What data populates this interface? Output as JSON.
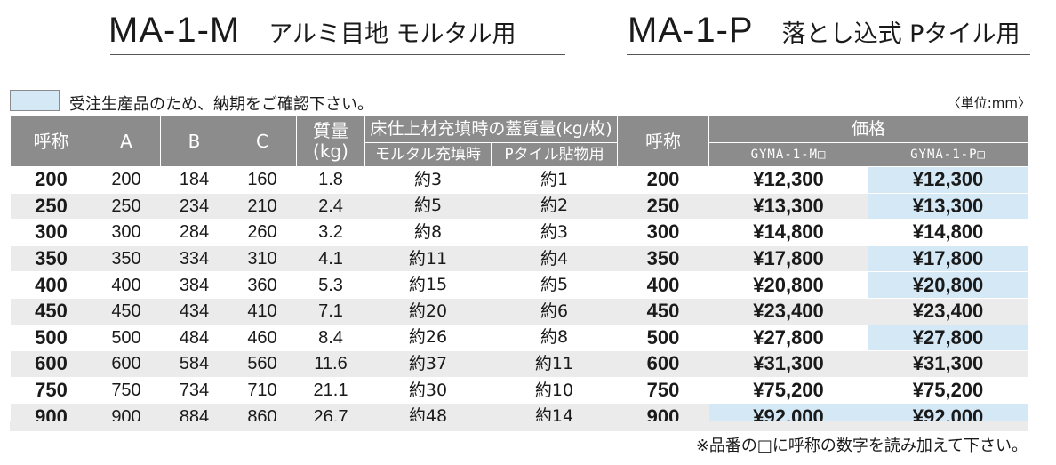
{
  "titles": {
    "left_code": "MA-1-M",
    "left_sub": "アルミ目地 モルタル用",
    "right_code": "MA-1-P",
    "right_sub": "落とし込式 Pタイル用"
  },
  "legend": {
    "swatch_color": "#d4e8f6",
    "text": "受注生産品のため、納期をご確認下さい。",
    "unit": "〈単位:mm〉"
  },
  "table": {
    "headers": {
      "name": "呼称",
      "a": "A",
      "b": "B",
      "c": "C",
      "weight_line1": "質量",
      "weight_line2": "(kg)",
      "cover_group": "床仕上材充填時の蓋質量(kg/枚)",
      "mortar": "モルタル充填時",
      "ptile": "Pタイル貼物用",
      "name2": "呼称",
      "price_group": "価格",
      "price_m": "GYMA-1-M□",
      "price_p": "GYMA-1-P□"
    },
    "highlight_color": "#d4e8f6",
    "rows": [
      {
        "name": "200",
        "a": "200",
        "b": "184",
        "c": "160",
        "weight": "1.8",
        "mortar": "約3",
        "ptile": "約1",
        "name2": "200",
        "price_m": "¥12,300",
        "price_p": "¥12,300",
        "m_hl": false,
        "p_hl": true
      },
      {
        "name": "250",
        "a": "250",
        "b": "234",
        "c": "210",
        "weight": "2.4",
        "mortar": "約5",
        "ptile": "約2",
        "name2": "250",
        "price_m": "¥13,300",
        "price_p": "¥13,300",
        "m_hl": false,
        "p_hl": true
      },
      {
        "name": "300",
        "a": "300",
        "b": "284",
        "c": "260",
        "weight": "3.2",
        "mortar": "約8",
        "ptile": "約3",
        "name2": "300",
        "price_m": "¥14,800",
        "price_p": "¥14,800",
        "m_hl": false,
        "p_hl": false
      },
      {
        "name": "350",
        "a": "350",
        "b": "334",
        "c": "310",
        "weight": "4.1",
        "mortar": "約11",
        "ptile": "約4",
        "name2": "350",
        "price_m": "¥17,800",
        "price_p": "¥17,800",
        "m_hl": false,
        "p_hl": true
      },
      {
        "name": "400",
        "a": "400",
        "b": "384",
        "c": "360",
        "weight": "5.3",
        "mortar": "約15",
        "ptile": "約5",
        "name2": "400",
        "price_m": "¥20,800",
        "price_p": "¥20,800",
        "m_hl": false,
        "p_hl": true
      },
      {
        "name": "450",
        "a": "450",
        "b": "434",
        "c": "410",
        "weight": "7.1",
        "mortar": "約20",
        "ptile": "約6",
        "name2": "450",
        "price_m": "¥23,400",
        "price_p": "¥23,400",
        "m_hl": false,
        "p_hl": false
      },
      {
        "name": "500",
        "a": "500",
        "b": "484",
        "c": "460",
        "weight": "8.4",
        "mortar": "約26",
        "ptile": "約8",
        "name2": "500",
        "price_m": "¥27,800",
        "price_p": "¥27,800",
        "m_hl": false,
        "p_hl": true
      },
      {
        "name": "600",
        "a": "600",
        "b": "584",
        "c": "560",
        "weight": "11.6",
        "mortar": "約37",
        "ptile": "約11",
        "name2": "600",
        "price_m": "¥31,300",
        "price_p": "¥31,300",
        "m_hl": false,
        "p_hl": false
      },
      {
        "name": "750",
        "a": "750",
        "b": "734",
        "c": "710",
        "weight": "21.1",
        "mortar": "約30",
        "ptile": "約10",
        "name2": "750",
        "price_m": "¥75,200",
        "price_p": "¥75,200",
        "m_hl": false,
        "p_hl": false
      },
      {
        "name": "900",
        "a": "900",
        "b": "884",
        "c": "860",
        "weight": "26.7",
        "mortar": "約48",
        "ptile": "約14",
        "name2": "900",
        "price_m": "¥92,000",
        "price_p": "¥92,000",
        "m_hl": true,
        "p_hl": true
      }
    ]
  },
  "footnote": "※品番の□に呼称の数字を読み加えて下さい。"
}
